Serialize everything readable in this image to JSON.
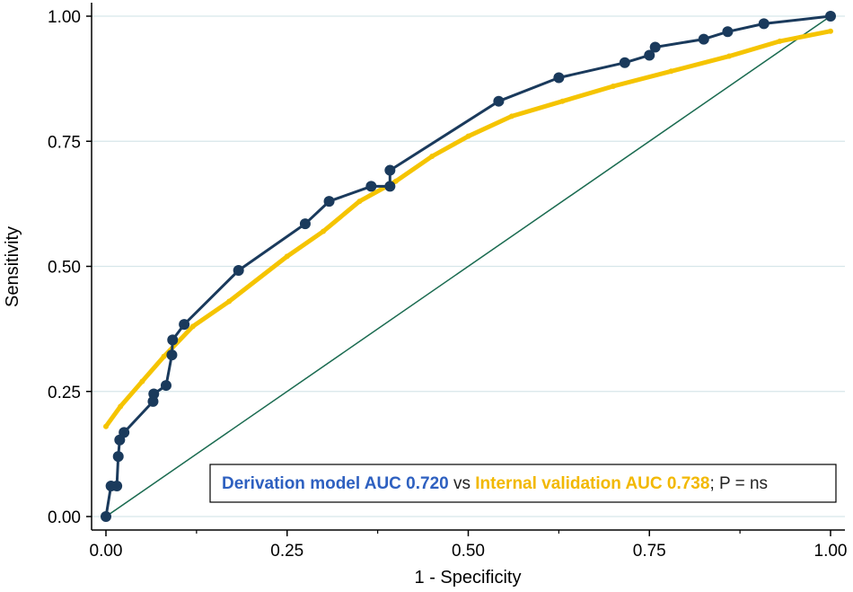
{
  "chart_data": {
    "type": "line",
    "xlabel": "1 - Specificity",
    "ylabel": "Sensitivity",
    "xlim": [
      0,
      1
    ],
    "ylim": [
      0,
      1
    ],
    "xticks": [
      "0.00",
      "0.25",
      "0.50",
      "0.75",
      "1.00"
    ],
    "yticks": [
      "0.00",
      "0.25",
      "0.50",
      "0.75",
      "1.00"
    ],
    "grid": "horizontal",
    "legend": {
      "position": "bottom-right",
      "derivation_text": "Derivation model AUC 0.720",
      "vs_text": " vs ",
      "validation_text": "Internal validation AUC 0.738",
      "tail_text": "; P = ns"
    },
    "series": [
      {
        "name": "Derivation model AUC 0.720",
        "color": "#1a3a5c",
        "markers": true,
        "points": [
          [
            0.0,
            0.0
          ],
          [
            0.007,
            0.061
          ],
          [
            0.015,
            0.061
          ],
          [
            0.017,
            0.12
          ],
          [
            0.019,
            0.153
          ],
          [
            0.025,
            0.168
          ],
          [
            0.065,
            0.23
          ],
          [
            0.066,
            0.245
          ],
          [
            0.083,
            0.262
          ],
          [
            0.091,
            0.323
          ],
          [
            0.092,
            0.353
          ],
          [
            0.108,
            0.384
          ],
          [
            0.183,
            0.492
          ],
          [
            0.275,
            0.585
          ],
          [
            0.308,
            0.63
          ],
          [
            0.366,
            0.66
          ],
          [
            0.392,
            0.66
          ],
          [
            0.392,
            0.692
          ],
          [
            0.542,
            0.83
          ],
          [
            0.625,
            0.877
          ],
          [
            0.716,
            0.907
          ],
          [
            0.75,
            0.922
          ],
          [
            0.758,
            0.938
          ],
          [
            0.825,
            0.954
          ],
          [
            0.858,
            0.969
          ],
          [
            0.908,
            0.985
          ],
          [
            1.0,
            1.0
          ]
        ]
      },
      {
        "name": "Internal validation AUC 0.738",
        "color": "#f5c400",
        "markers": false,
        "points": [
          [
            0.0,
            0.18
          ],
          [
            0.02,
            0.22
          ],
          [
            0.05,
            0.27
          ],
          [
            0.08,
            0.32
          ],
          [
            0.12,
            0.38
          ],
          [
            0.17,
            0.43
          ],
          [
            0.25,
            0.52
          ],
          [
            0.3,
            0.57
          ],
          [
            0.35,
            0.63
          ],
          [
            0.4,
            0.67
          ],
          [
            0.45,
            0.72
          ],
          [
            0.5,
            0.76
          ],
          [
            0.56,
            0.8
          ],
          [
            0.63,
            0.83
          ],
          [
            0.7,
            0.86
          ],
          [
            0.78,
            0.89
          ],
          [
            0.86,
            0.92
          ],
          [
            0.93,
            0.95
          ],
          [
            1.0,
            0.97
          ]
        ]
      },
      {
        "name": "Reference",
        "color": "#1a6b50",
        "markers": false,
        "points": [
          [
            0,
            0
          ],
          [
            1,
            1
          ]
        ]
      }
    ]
  }
}
